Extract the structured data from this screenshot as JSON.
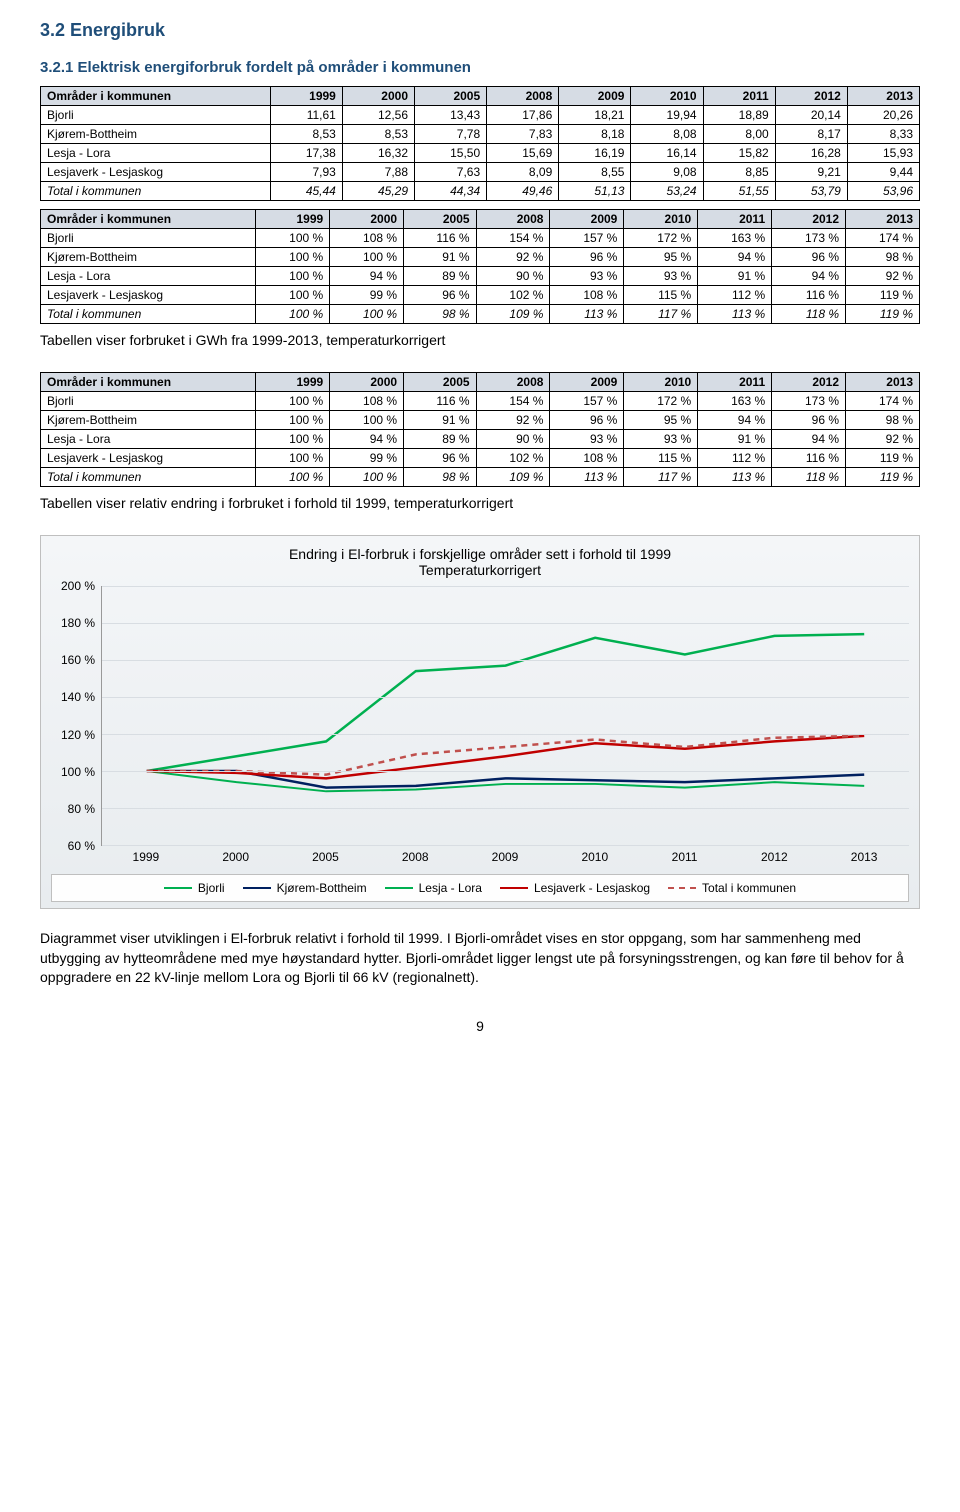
{
  "headings": {
    "section": "3.2 Energibruk",
    "subsection": "3.2.1 Elektrisk energiforbruk fordelt på områder i kommunen"
  },
  "years": [
    "1999",
    "2000",
    "2005",
    "2008",
    "2009",
    "2010",
    "2011",
    "2012",
    "2013"
  ],
  "row_label_header": "Områder i kommunen",
  "table_abs": {
    "rows": [
      {
        "label": "Bjorli",
        "vals": [
          "11,61",
          "12,56",
          "13,43",
          "17,86",
          "18,21",
          "19,94",
          "18,89",
          "20,14",
          "20,26"
        ]
      },
      {
        "label": "Kjørem-Bottheim",
        "vals": [
          "8,53",
          "8,53",
          "7,78",
          "7,83",
          "8,18",
          "8,08",
          "8,00",
          "8,17",
          "8,33"
        ]
      },
      {
        "label": "Lesja - Lora",
        "vals": [
          "17,38",
          "16,32",
          "15,50",
          "15,69",
          "16,19",
          "16,14",
          "15,82",
          "16,28",
          "15,93"
        ]
      },
      {
        "label": "Lesjaverk - Lesjaskog",
        "vals": [
          "7,93",
          "7,88",
          "7,63",
          "8,09",
          "8,55",
          "9,08",
          "8,85",
          "9,21",
          "9,44"
        ]
      },
      {
        "label": "Total i kommunen",
        "vals": [
          "45,44",
          "45,29",
          "44,34",
          "49,46",
          "51,13",
          "53,24",
          "51,55",
          "53,79",
          "53,96"
        ],
        "total": true
      }
    ]
  },
  "table_pct": {
    "rows": [
      {
        "label": "Bjorli",
        "vals": [
          "100 %",
          "108 %",
          "116 %",
          "154 %",
          "157 %",
          "172 %",
          "163 %",
          "173 %",
          "174 %"
        ]
      },
      {
        "label": "Kjørem-Bottheim",
        "vals": [
          "100 %",
          "100 %",
          "91 %",
          "92 %",
          "96 %",
          "95 %",
          "94 %",
          "96 %",
          "98 %"
        ]
      },
      {
        "label": "Lesja - Lora",
        "vals": [
          "100 %",
          "94 %",
          "89 %",
          "90 %",
          "93 %",
          "93 %",
          "91 %",
          "94 %",
          "92 %"
        ]
      },
      {
        "label": "Lesjaverk - Lesjaskog",
        "vals": [
          "100 %",
          "99 %",
          "96 %",
          "102 %",
          "108 %",
          "115 %",
          "112 %",
          "116 %",
          "119 %"
        ]
      },
      {
        "label": "Total i kommunen",
        "vals": [
          "100 %",
          "100 %",
          "98 %",
          "109 %",
          "113 %",
          "117 %",
          "113 %",
          "118 %",
          "119 %"
        ],
        "total": true
      }
    ]
  },
  "caption1": "Tabellen viser forbruket i GWh fra 1999-2013, temperaturkorrigert",
  "caption2": "Tabellen viser relativ endring i forbruket i forhold til 1999, temperaturkorrigert",
  "chart": {
    "title_line1": "Endring i El-forbruk i forskjellige områder sett i forhold til 1999",
    "title_line2": "Temperaturkorrigert",
    "y_ticks": [
      "200 %",
      "180 %",
      "160 %",
      "140 %",
      "120 %",
      "100 %",
      "80 %",
      "60 %"
    ],
    "y_min": 60,
    "y_max": 200,
    "x_labels": [
      "1999",
      "2000",
      "2005",
      "2008",
      "2009",
      "2010",
      "2011",
      "2012",
      "2013"
    ],
    "series": [
      {
        "name": "Bjorli",
        "color": "#00b050",
        "dash": false,
        "vals": [
          100,
          108,
          116,
          154,
          157,
          172,
          163,
          173,
          174
        ]
      },
      {
        "name": "Kjørem-Bottheim",
        "color": "#002060",
        "dash": false,
        "vals": [
          100,
          100,
          91,
          92,
          96,
          95,
          94,
          96,
          98
        ]
      },
      {
        "name": "Lesja - Lora",
        "color": "#00b050",
        "dash": false,
        "vals": [
          100,
          94,
          89,
          90,
          93,
          93,
          91,
          94,
          92
        ],
        "alt": true
      },
      {
        "name": "Lesjaverk - Lesjaskog",
        "color": "#c00000",
        "dash": false,
        "vals": [
          100,
          99,
          96,
          102,
          108,
          115,
          112,
          116,
          119
        ]
      },
      {
        "name": "Total i kommunen",
        "color": "#c0504d",
        "dash": true,
        "vals": [
          100,
          100,
          98,
          109,
          113,
          117,
          113,
          118,
          119
        ]
      }
    ],
    "legend": [
      {
        "label": "Bjorli",
        "color": "#00b050",
        "dash": false
      },
      {
        "label": "Kjørem-Bottheim",
        "color": "#002060",
        "dash": false
      },
      {
        "label": "Lesja - Lora",
        "color": "#00b050",
        "dash": false
      },
      {
        "label": "Lesjaverk - Lesjaskog",
        "color": "#c00000",
        "dash": false
      },
      {
        "label": "Total i kommunen",
        "color": "#c0504d",
        "dash": true
      }
    ]
  },
  "body_text": "Diagrammet viser utviklingen i El-forbruk relativt i forhold til 1999. I Bjorli-området vises en stor oppgang, som har sammenheng med utbygging av hytteområdene med mye høystandard hytter. Bjorli-området ligger lengst ute på forsyningsstrengen, og kan føre til behov for å oppgradere en 22 kV-linje mellom Lora og Bjorli til 66 kV (regionalnett).",
  "page_number": "9"
}
